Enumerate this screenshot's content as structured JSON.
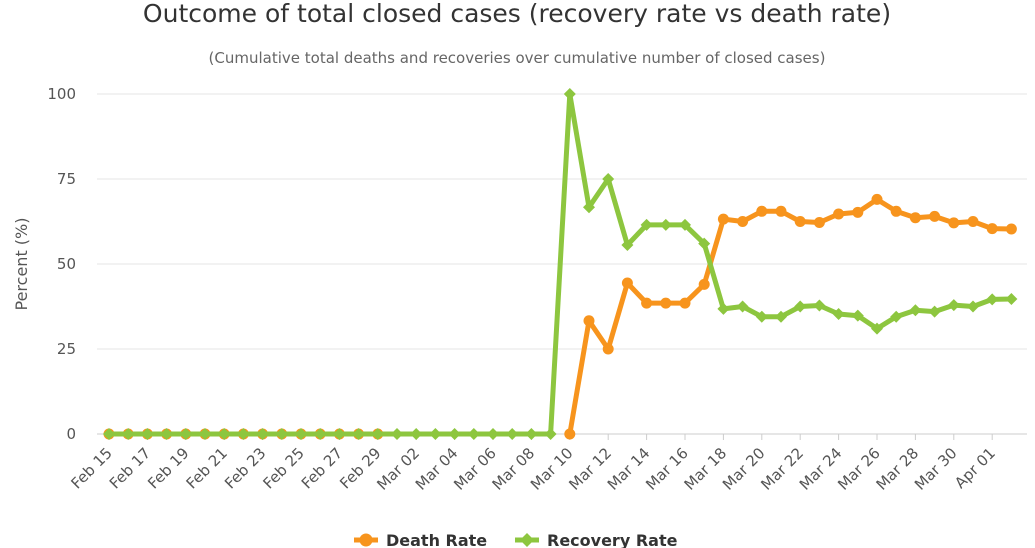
{
  "chart_data": {
    "type": "line",
    "title": "Outcome of total closed cases (recovery rate vs death rate)",
    "subtitle": "(Cumulative total deaths and recoveries over cumulative number of closed cases)",
    "ylabel": "Percent (%)",
    "ylim": [
      0,
      100
    ],
    "yticks": [
      "0",
      "25",
      "50",
      "75",
      "100"
    ],
    "grid": true,
    "legend_position": "bottom-center",
    "x": [
      "Feb 15",
      "Feb 16",
      "Feb 17",
      "Feb 18",
      "Feb 19",
      "Feb 20",
      "Feb 21",
      "Feb 22",
      "Feb 23",
      "Feb 24",
      "Feb 25",
      "Feb 26",
      "Feb 27",
      "Feb 28",
      "Feb 29",
      "Mar 01",
      "Mar 02",
      "Mar 03",
      "Mar 04",
      "Mar 05",
      "Mar 06",
      "Mar 07",
      "Mar 08",
      "Mar 09",
      "Mar 10",
      "Mar 11",
      "Mar 12",
      "Mar 13",
      "Mar 14",
      "Mar 15",
      "Mar 16",
      "Mar 17",
      "Mar 18",
      "Mar 19",
      "Mar 20",
      "Mar 21",
      "Mar 22",
      "Mar 23",
      "Mar 24",
      "Mar 25",
      "Mar 26",
      "Mar 27",
      "Mar 28",
      "Mar 29",
      "Mar 30",
      "Mar 31",
      "Apr 01",
      "Apr 02"
    ],
    "x_tick_labels": [
      "Feb 15",
      "Feb 17",
      "Feb 19",
      "Feb 21",
      "Feb 23",
      "Feb 25",
      "Feb 27",
      "Feb 29",
      "Mar 02",
      "Mar 04",
      "Mar 06",
      "Mar 08",
      "Mar 10",
      "Mar 12",
      "Mar 14",
      "Mar 16",
      "Mar 18",
      "Mar 20",
      "Mar 22",
      "Mar 24",
      "Mar 26",
      "Mar 28",
      "Mar 30",
      "Apr 01"
    ],
    "series": [
      {
        "name": "Death Rate",
        "color": "#f7941d",
        "marker": "circle",
        "values": [
          0,
          0,
          0,
          0,
          0,
          0,
          0,
          0,
          0,
          0,
          0,
          0,
          0,
          0,
          0,
          null,
          null,
          null,
          null,
          null,
          null,
          null,
          null,
          null,
          0,
          33.3,
          25,
          44.4,
          38.5,
          38.5,
          38.5,
          44,
          63.2,
          62.5,
          65.5,
          65.5,
          62.5,
          62.2,
          64.7,
          65.2,
          69,
          65.5,
          63.6,
          64,
          62.1,
          62.5,
          60.4,
          60.3
        ]
      },
      {
        "name": "Recovery Rate",
        "color": "#8dc63f",
        "marker": "diamond",
        "values": [
          0,
          0,
          0,
          0,
          0,
          0,
          0,
          0,
          0,
          0,
          0,
          0,
          0,
          0,
          0,
          0,
          0,
          0,
          0,
          0,
          0,
          0,
          0,
          0,
          100,
          66.7,
          75,
          55.6,
          61.5,
          61.5,
          61.5,
          56,
          36.8,
          37.5,
          34.5,
          34.5,
          37.5,
          37.8,
          35.3,
          34.8,
          31,
          34.5,
          36.4,
          36,
          37.9,
          37.5,
          39.6,
          39.7
        ]
      }
    ]
  }
}
